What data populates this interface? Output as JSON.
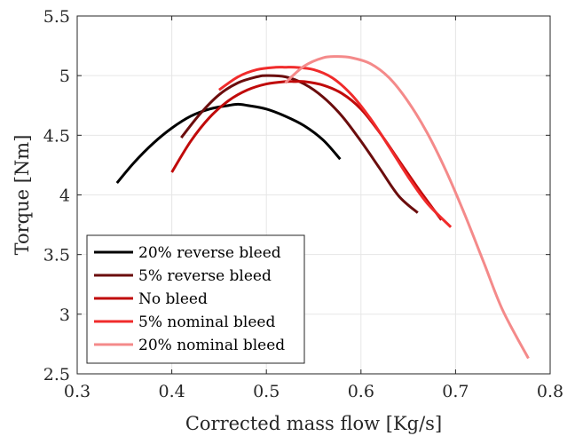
{
  "chart_data": {
    "type": "line",
    "title": "",
    "xlabel": "Corrected mass flow [Kg/s]",
    "ylabel": "Torque [Nm]",
    "xlim": [
      0.3,
      0.8
    ],
    "ylim": [
      2.5,
      5.5
    ],
    "xticks": [
      0.3,
      0.4,
      0.5,
      0.6,
      0.7,
      0.8
    ],
    "xtick_labels": [
      "0.3",
      "0.4",
      "0.5",
      "0.6",
      "0.7",
      "0.8"
    ],
    "yticks": [
      2.5,
      3,
      3.5,
      4,
      4.5,
      5,
      5.5
    ],
    "ytick_labels": [
      "2.5",
      "3",
      "3.5",
      "4",
      "4.5",
      "5",
      "5.5"
    ],
    "grid": true,
    "legend_position": "bottom-left",
    "series": [
      {
        "name": "20% reverse bleed",
        "color": "#000000",
        "x": [
          0.342,
          0.36,
          0.38,
          0.4,
          0.42,
          0.44,
          0.46,
          0.47,
          0.48,
          0.5,
          0.52,
          0.54,
          0.56,
          0.578
        ],
        "y": [
          4.1,
          4.27,
          4.43,
          4.56,
          4.66,
          4.72,
          4.75,
          4.76,
          4.75,
          4.72,
          4.66,
          4.58,
          4.46,
          4.3
        ]
      },
      {
        "name": "5% reverse bleed",
        "color": "#6b0d0d",
        "x": [
          0.41,
          0.43,
          0.45,
          0.47,
          0.49,
          0.5,
          0.52,
          0.54,
          0.56,
          0.58,
          0.6,
          0.62,
          0.64,
          0.66
        ],
        "y": [
          4.48,
          4.68,
          4.84,
          4.94,
          4.99,
          5.0,
          4.99,
          4.93,
          4.82,
          4.66,
          4.45,
          4.22,
          3.99,
          3.85
        ]
      },
      {
        "name": "No bleed",
        "color": "#c00a0a",
        "x": [
          0.4,
          0.42,
          0.44,
          0.46,
          0.48,
          0.5,
          0.52,
          0.53,
          0.54,
          0.56,
          0.58,
          0.6,
          0.62,
          0.64,
          0.66,
          0.685
        ],
        "y": [
          4.19,
          4.45,
          4.65,
          4.79,
          4.88,
          4.93,
          4.95,
          4.95,
          4.95,
          4.92,
          4.85,
          4.72,
          4.52,
          4.29,
          4.06,
          3.79
        ]
      },
      {
        "name": "5% nominal bleed",
        "color": "#f02b2b",
        "x": [
          0.45,
          0.47,
          0.49,
          0.51,
          0.52,
          0.53,
          0.55,
          0.57,
          0.59,
          0.61,
          0.63,
          0.65,
          0.67,
          0.695
        ],
        "y": [
          4.88,
          4.99,
          5.05,
          5.07,
          5.07,
          5.07,
          5.05,
          4.98,
          4.84,
          4.64,
          4.4,
          4.15,
          3.93,
          3.73
        ]
      },
      {
        "name": "20% nominal bleed",
        "color": "#f48a8a",
        "x": [
          0.52,
          0.54,
          0.56,
          0.575,
          0.59,
          0.61,
          0.63,
          0.65,
          0.67,
          0.69,
          0.71,
          0.73,
          0.75,
          0.777
        ],
        "y": [
          4.94,
          5.08,
          5.15,
          5.16,
          5.15,
          5.1,
          4.98,
          4.78,
          4.52,
          4.2,
          3.83,
          3.43,
          3.03,
          2.63
        ]
      }
    ]
  }
}
